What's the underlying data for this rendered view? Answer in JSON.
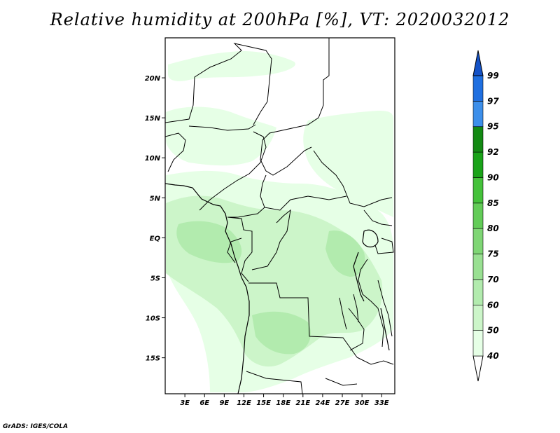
{
  "title": "Relative humidity at 200hPa [%], VT: 2020032012",
  "footer": "GrADS: IGES/COLA",
  "map": {
    "lon_range": [
      0,
      35
    ],
    "lat_range": [
      -19.5,
      25
    ],
    "lat_ticks": [
      {
        "value": 20,
        "label": "20N"
      },
      {
        "value": 15,
        "label": "15N"
      },
      {
        "value": 10,
        "label": "10N"
      },
      {
        "value": 5,
        "label": "5N"
      },
      {
        "value": 0,
        "label": "EQ"
      },
      {
        "value": -5,
        "label": "5S"
      },
      {
        "value": -10,
        "label": "10S"
      },
      {
        "value": -15,
        "label": "15S"
      }
    ],
    "lon_ticks": [
      {
        "value": 3,
        "label": "3E"
      },
      {
        "value": 6,
        "label": "6E"
      },
      {
        "value": 9,
        "label": "9E"
      },
      {
        "value": 12,
        "label": "12E"
      },
      {
        "value": 15,
        "label": "15E"
      },
      {
        "value": 18,
        "label": "18E"
      },
      {
        "value": 21,
        "label": "21E"
      },
      {
        "value": 24,
        "label": "24E"
      },
      {
        "value": 27,
        "label": "27E"
      },
      {
        "value": 30,
        "label": "30E"
      },
      {
        "value": 33,
        "label": "33E"
      }
    ]
  },
  "colorbar": {
    "levels": [
      "40",
      "50",
      "60",
      "70",
      "75",
      "80",
      "85",
      "90",
      "92",
      "95",
      "97",
      "99"
    ],
    "colors": [
      "#ffffff",
      "#e6ffe6",
      "#ccf5c9",
      "#b2ebae",
      "#99e092",
      "#7fd675",
      "#63cc58",
      "#45c23b",
      "#1aa319",
      "#138a13",
      "#3d8fea",
      "#1f6fe0",
      "#1452c7"
    ]
  }
}
